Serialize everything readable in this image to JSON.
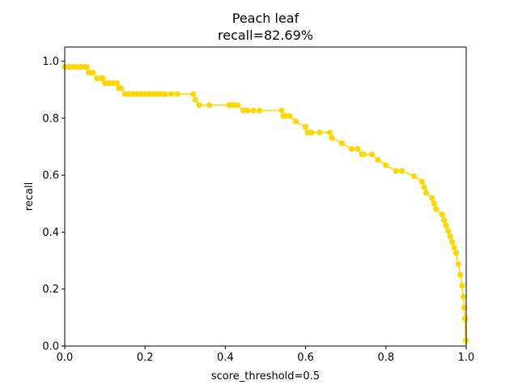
{
  "chart_data": {
    "type": "line",
    "title": "Peach leaf",
    "subtitle": "recall=82.69%",
    "xlabel": "score_threshold=0.5",
    "ylabel": "recall",
    "xlim": [
      0.0,
      1.0
    ],
    "ylim": [
      0.0,
      1.05
    ],
    "xticks": [
      "0.0",
      "0.2",
      "0.4",
      "0.6",
      "0.8",
      "1.0"
    ],
    "yticks": [
      "0.0",
      "0.2",
      "0.4",
      "0.6",
      "0.8",
      "1.0"
    ],
    "grid": false,
    "legend": "none",
    "series": [
      {
        "color": "#FFD700",
        "marker": "circle",
        "x": [
          0.0,
          0.01,
          0.02,
          0.03,
          0.04,
          0.05,
          0.055,
          0.06,
          0.07,
          0.08,
          0.09,
          0.095,
          0.1,
          0.11,
          0.12,
          0.13,
          0.135,
          0.14,
          0.15,
          0.16,
          0.17,
          0.18,
          0.19,
          0.2,
          0.21,
          0.22,
          0.23,
          0.24,
          0.25,
          0.265,
          0.28,
          0.32,
          0.325,
          0.335,
          0.36,
          0.41,
          0.42,
          0.43,
          0.445,
          0.455,
          0.47,
          0.485,
          0.54,
          0.545,
          0.55,
          0.56,
          0.575,
          0.6,
          0.605,
          0.615,
          0.635,
          0.66,
          0.665,
          0.69,
          0.715,
          0.73,
          0.74,
          0.745,
          0.765,
          0.78,
          0.8,
          0.825,
          0.84,
          0.87,
          0.89,
          0.895,
          0.9,
          0.915,
          0.92,
          0.925,
          0.94,
          0.945,
          0.95,
          0.955,
          0.96,
          0.965,
          0.97,
          0.975,
          0.98,
          0.985,
          0.99,
          0.993,
          0.995,
          0.997,
          0.999
        ],
        "y": [
          0.98,
          0.98,
          0.98,
          0.98,
          0.98,
          0.98,
          0.98,
          0.96,
          0.96,
          0.94,
          0.94,
          0.94,
          0.923,
          0.923,
          0.923,
          0.923,
          0.905,
          0.905,
          0.885,
          0.885,
          0.885,
          0.885,
          0.885,
          0.885,
          0.885,
          0.885,
          0.885,
          0.885,
          0.885,
          0.885,
          0.885,
          0.885,
          0.865,
          0.846,
          0.846,
          0.846,
          0.846,
          0.846,
          0.827,
          0.827,
          0.827,
          0.827,
          0.827,
          0.808,
          0.808,
          0.808,
          0.789,
          0.77,
          0.75,
          0.75,
          0.75,
          0.75,
          0.731,
          0.712,
          0.692,
          0.692,
          0.673,
          0.673,
          0.673,
          0.654,
          0.635,
          0.615,
          0.615,
          0.596,
          0.577,
          0.558,
          0.538,
          0.519,
          0.5,
          0.481,
          0.462,
          0.442,
          0.423,
          0.404,
          0.385,
          0.365,
          0.346,
          0.327,
          0.288,
          0.25,
          0.212,
          0.173,
          0.135,
          0.096,
          0.019
        ]
      }
    ]
  }
}
